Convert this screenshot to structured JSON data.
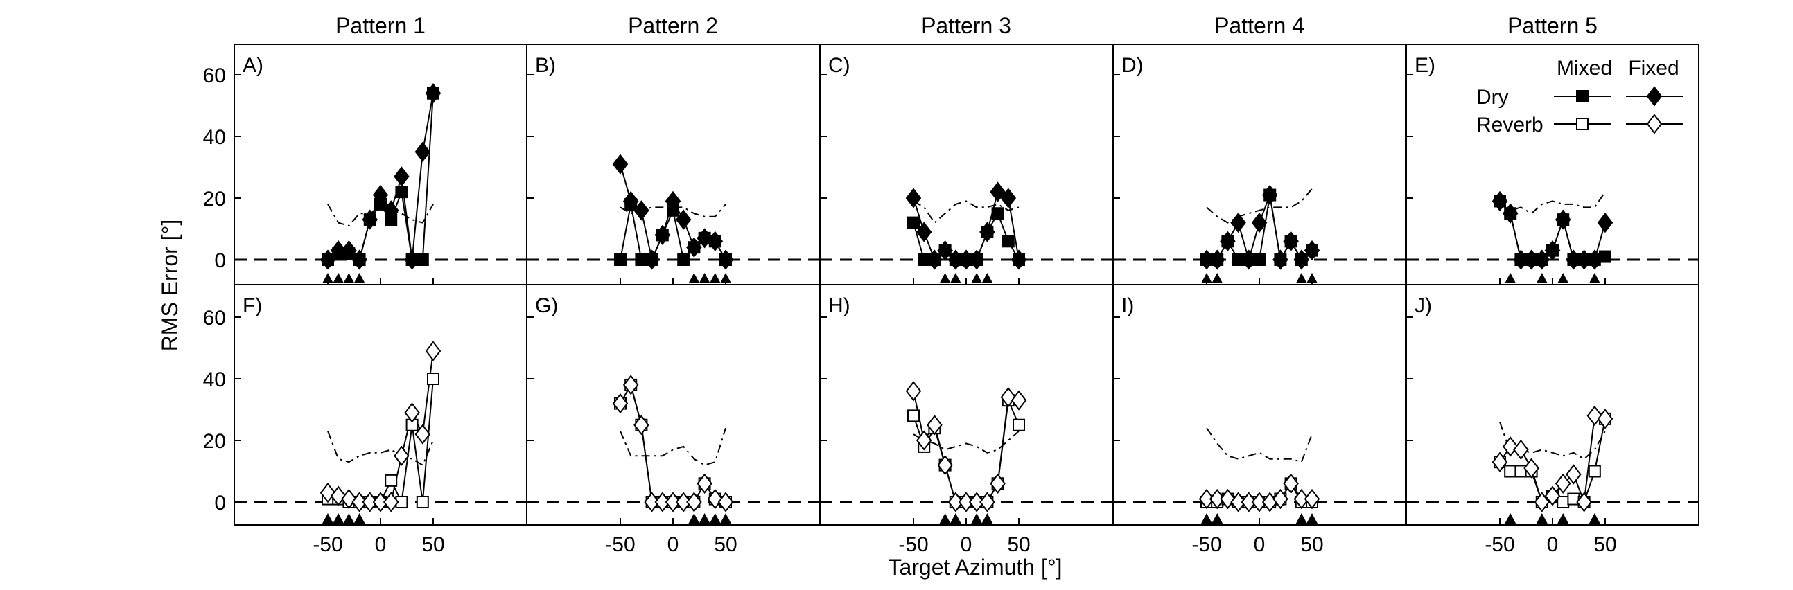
{
  "figure": {
    "xlabel": "Target Azimuth [°]",
    "ylabel": "RMS Error [°]",
    "column_titles": [
      "Pattern 1",
      "Pattern 2",
      "Pattern 3",
      "Pattern 4",
      "Pattern 5"
    ],
    "legend": {
      "col_mixed": "Mixed",
      "col_fixed": "Fixed",
      "row_dry": "Dry",
      "row_reverb": "Reverb"
    }
  },
  "chart_data": {
    "type": "line",
    "x": [
      -50,
      -40,
      -30,
      -20,
      -10,
      0,
      10,
      20,
      30,
      40,
      50
    ],
    "xticks": [
      -50,
      0,
      50
    ],
    "yticks": [
      0,
      20,
      40,
      60
    ],
    "xlim": [
      -63,
      63
    ],
    "ylim": [
      -8,
      70
    ],
    "panels": [
      {
        "label": "A)",
        "row": 0,
        "col": 0,
        "mixed": [
          0,
          2,
          2,
          0,
          13,
          18,
          13,
          22,
          0,
          0,
          54
        ],
        "fixed": [
          0,
          3,
          3,
          0,
          13,
          21,
          16,
          27,
          0,
          35,
          54
        ],
        "reference": [
          18,
          12,
          11,
          15,
          15,
          17,
          16,
          15,
          13,
          12,
          18
        ],
        "markers": [
          -50,
          -40,
          -30,
          -20
        ]
      },
      {
        "label": "B)",
        "row": 0,
        "col": 1,
        "mixed": [
          0,
          18,
          0,
          0,
          8,
          16,
          0,
          4,
          7,
          6,
          0
        ],
        "fixed": [
          31,
          19,
          16,
          0,
          8,
          19,
          13,
          4,
          7,
          6,
          0
        ],
        "reference": [
          17,
          15,
          16,
          17,
          17,
          17,
          17,
          15,
          14,
          14,
          18
        ],
        "markers": [
          20,
          30,
          40,
          50
        ]
      },
      {
        "label": "C)",
        "row": 0,
        "col": 2,
        "mixed": [
          12,
          0,
          0,
          3,
          0,
          0,
          0,
          9,
          15,
          6,
          0
        ],
        "fixed": [
          20,
          9,
          0,
          3,
          0,
          0,
          0,
          9,
          22,
          20,
          0
        ],
        "reference": [
          19,
          17,
          12,
          15,
          18,
          19,
          17,
          17,
          18,
          16,
          17
        ],
        "markers": [
          -20,
          -10,
          10,
          20
        ]
      },
      {
        "label": "D)",
        "row": 0,
        "col": 3,
        "mixed": [
          0,
          0,
          6,
          0,
          0,
          0,
          21,
          0,
          6,
          0,
          3
        ],
        "fixed": [
          0,
          0,
          6,
          12,
          0,
          12,
          21,
          0,
          6,
          0,
          3
        ],
        "reference": [
          17,
          14,
          12,
          14,
          15,
          16,
          17,
          17,
          17,
          19,
          23
        ],
        "markers": [
          -50,
          -40,
          40,
          50
        ]
      },
      {
        "label": "E)",
        "row": 0,
        "col": 4,
        "mixed": [
          19,
          15,
          0,
          0,
          0,
          3,
          13,
          0,
          0,
          0,
          1
        ],
        "fixed": [
          19,
          15,
          0,
          0,
          0,
          3,
          13,
          0,
          0,
          0,
          12
        ],
        "reference": [
          19,
          16,
          17,
          15,
          18,
          19,
          18,
          18,
          17,
          17,
          22
        ],
        "markers": [
          -40,
          -10,
          10,
          40
        ]
      },
      {
        "label": "F)",
        "row": 1,
        "col": 0,
        "mixed": [
          1,
          1,
          0,
          0,
          0,
          0,
          7,
          0,
          25,
          0,
          40
        ],
        "fixed": [
          3,
          2,
          1,
          0,
          0,
          0,
          0,
          15,
          29,
          22,
          49
        ],
        "reference": [
          23,
          14,
          13,
          15,
          16,
          16,
          17,
          15,
          14,
          12,
          20
        ],
        "markers": [
          -50,
          -40,
          -30,
          -20
        ]
      },
      {
        "label": "G)",
        "row": 1,
        "col": 1,
        "mixed": [
          32,
          38,
          25,
          0,
          0,
          0,
          0,
          0,
          6,
          1,
          0
        ],
        "fixed": [
          32,
          38,
          25,
          0,
          0,
          0,
          0,
          0,
          6,
          1,
          0
        ],
        "reference": [
          23,
          15,
          15,
          15,
          15,
          17,
          18,
          14,
          12,
          13,
          24
        ],
        "markers": [
          20,
          30,
          40,
          50
        ]
      },
      {
        "label": "H)",
        "row": 1,
        "col": 2,
        "mixed": [
          28,
          18,
          24,
          12,
          0,
          0,
          0,
          0,
          6,
          33,
          25
        ],
        "fixed": [
          36,
          20,
          25,
          12,
          0,
          0,
          0,
          0,
          6,
          34,
          33
        ],
        "reference": [
          22,
          20,
          19,
          17,
          18,
          19,
          18,
          16,
          17,
          20,
          23
        ],
        "markers": [
          -20,
          -10,
          10,
          20
        ]
      },
      {
        "label": "I)",
        "row": 1,
        "col": 3,
        "mixed": [
          0,
          0,
          1,
          0,
          0,
          0,
          0,
          1,
          6,
          0,
          0
        ],
        "fixed": [
          1,
          1,
          1,
          0,
          0,
          0,
          0,
          1,
          6,
          1,
          1
        ],
        "reference": [
          24,
          19,
          15,
          14,
          15,
          16,
          14,
          14,
          14,
          13,
          22
        ],
        "markers": [
          -50,
          -40,
          40,
          50
        ]
      },
      {
        "label": "J)",
        "row": 1,
        "col": 4,
        "mixed": [
          13,
          10,
          10,
          10,
          0,
          2,
          0,
          1,
          0,
          10,
          27
        ],
        "fixed": [
          13,
          18,
          17,
          11,
          0,
          2,
          6,
          9,
          0,
          28,
          27
        ],
        "reference": [
          26,
          16,
          17,
          16,
          17,
          16,
          15,
          16,
          14,
          17,
          23
        ],
        "markers": [
          -40,
          -10,
          10,
          40
        ]
      }
    ]
  }
}
